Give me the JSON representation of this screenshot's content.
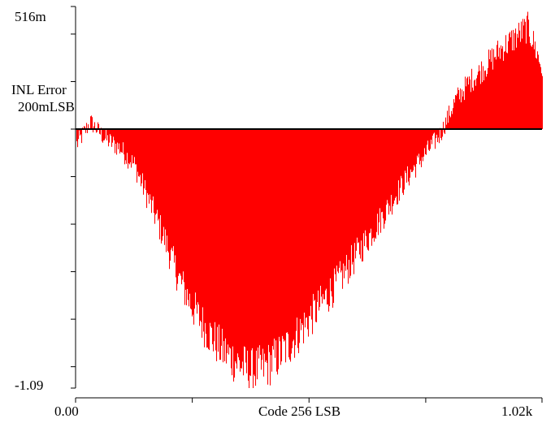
{
  "chart_data": {
    "type": "area",
    "title": "",
    "ylabel": "INL Error",
    "ydiv_label": "200mLSB",
    "xlabel": "Code 256 LSB",
    "y_top_label": "516m",
    "y_bottom_label": "-1.09",
    "x_left_label": "0.00",
    "x_right_label": "1.02k",
    "xlim": [
      0,
      1023
    ],
    "ylim": [
      -1.09,
      0.516
    ],
    "x_step": 256,
    "y_step": 0.2,
    "fill_color": "#ff0000",
    "grid": false,
    "series": [
      {
        "x": [
          0,
          32,
          64,
          96,
          128,
          160,
          192,
          224,
          256,
          288,
          320,
          352,
          384,
          416,
          448,
          480,
          512,
          544,
          576,
          608,
          640,
          672,
          704,
          736,
          768,
          800,
          832,
          864,
          896,
          928,
          960,
          992,
          1023
        ],
        "values": [
          -0.07,
          0.03,
          -0.04,
          -0.08,
          -0.15,
          -0.3,
          -0.45,
          -0.62,
          -0.75,
          -0.85,
          -0.93,
          -0.98,
          -1.02,
          -1.0,
          -0.95,
          -0.88,
          -0.8,
          -0.72,
          -0.64,
          -0.55,
          -0.46,
          -0.37,
          -0.27,
          -0.18,
          -0.1,
          -0.02,
          0.12,
          0.2,
          0.26,
          0.33,
          0.38,
          0.43,
          0.25
        ]
      }
    ]
  }
}
